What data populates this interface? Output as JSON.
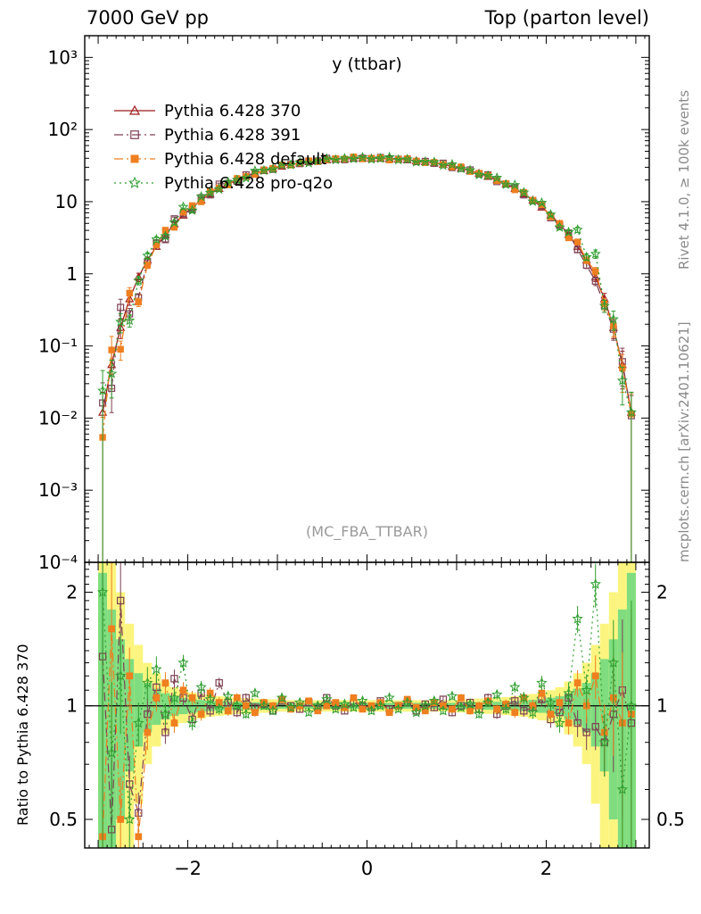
{
  "header": {
    "left": "7000 GeV pp",
    "right": "Top (parton level)"
  },
  "side_labels": {
    "right_top": "Rivet 4.1.0, ≥ 100k events",
    "right_bottom": "mcplots.cern.ch [arXiv:2401.10621]",
    "ratio_ylabel": "Ratio to Pythia 6.428 370"
  },
  "plot": {
    "title": "y (ttbar)",
    "watermark": "(MC_FBA_TTBAR)"
  },
  "axes": {
    "main_yticks": [
      "10³",
      "10²",
      "10",
      "1",
      "10⁻¹",
      "10⁻²",
      "10⁻³",
      "10⁻⁴"
    ],
    "main_ytick_exponents": [
      3,
      2,
      1,
      0,
      -1,
      -2,
      -3,
      -4
    ],
    "ratio_yticks": [
      "2",
      "1",
      "0.5"
    ],
    "ratio_ytick_values": [
      2,
      1,
      0.5
    ],
    "xticks": [
      "−2",
      "0",
      "2"
    ],
    "xtick_values": [
      -2,
      0,
      2
    ]
  },
  "chart_data": {
    "type": "line",
    "title": "y (ttbar)",
    "xlim": [
      -3.15,
      3.15
    ],
    "main_ylog": true,
    "main_ylim": [
      0.0001,
      2000
    ],
    "ratio_ylog": true,
    "ratio_ylim": [
      0.42,
      2.4
    ],
    "bin_width": 0.1,
    "x": [
      -2.95,
      -2.85,
      -2.75,
      -2.65,
      -2.55,
      -2.45,
      -2.35,
      -2.25,
      -2.15,
      -2.05,
      -1.95,
      -1.85,
      -1.75,
      -1.65,
      -1.55,
      -1.45,
      -1.35,
      -1.25,
      -1.15,
      -1.05,
      -0.95,
      -0.85,
      -0.75,
      -0.65,
      -0.55,
      -0.45,
      -0.35,
      -0.25,
      -0.15,
      -0.05,
      0.05,
      0.15,
      0.25,
      0.35,
      0.45,
      0.55,
      0.65,
      0.75,
      0.85,
      0.95,
      1.05,
      1.15,
      1.25,
      1.35,
      1.45,
      1.55,
      1.65,
      1.75,
      1.85,
      1.95,
      2.05,
      2.15,
      2.25,
      2.35,
      2.45,
      2.55,
      2.65,
      2.75,
      2.85,
      2.95
    ],
    "base_values": [
      0.012,
      0.055,
      0.18,
      0.45,
      0.9,
      1.55,
      2.4,
      3.5,
      4.9,
      6.5,
      8.4,
      10.5,
      12.8,
      15.2,
      17.6,
      20,
      22.4,
      24.8,
      27,
      29,
      31,
      32.8,
      34.4,
      35.8,
      37,
      38,
      38.8,
      39.4,
      39.8,
      40,
      40,
      39.8,
      39.4,
      38.8,
      38,
      37,
      35.8,
      34.4,
      32.8,
      31,
      29,
      27,
      24.8,
      22.4,
      20,
      17.6,
      15.2,
      12.8,
      10.5,
      8.4,
      6.5,
      4.9,
      3.5,
      2.4,
      1.55,
      0.9,
      0.45,
      0.18,
      0.055,
      0.012
    ],
    "series": [
      {
        "name": "Pythia 6.428 370",
        "color": "#9e1b1b",
        "marker": "triangle-open",
        "line": "solid",
        "ratio": null
      },
      {
        "name": "Pythia 6.428 391",
        "color": "#7d4052",
        "marker": "square-open",
        "line": "dashdot",
        "ratio": [
          1.35,
          0.47,
          1.9,
          0.62,
          0.52,
          0.95,
          1.12,
          0.85,
          1.18,
          1.05,
          0.92,
          1.08,
          0.97,
          1.15,
          1.02,
          0.96,
          1.05,
          0.99,
          1.01,
          0.97,
          1.03,
          1.0,
          0.98,
          1.02,
          0.99,
          1.05,
          1.0,
          0.97,
          1.02,
          1.0,
          0.99,
          1.03,
          0.98,
          1.0,
          1.02,
          0.97,
          1.01,
          0.99,
          1.04,
          0.96,
          1.0,
          1.02,
          0.98,
          1.05,
          0.95,
          1.0,
          1.03,
          0.97,
          0.99,
          1.04,
          0.92,
          0.96,
          1.05,
          0.9,
          0.85,
          0.88,
          0.8,
          0.95,
          1.1,
          0.9
        ]
      },
      {
        "name": "Pythia 6.428 default",
        "color": "#ef7f1f",
        "marker": "square-filled",
        "line": "dashdot",
        "ratio": [
          0.45,
          1.6,
          0.5,
          1.2,
          0.45,
          0.85,
          1.05,
          1.15,
          0.9,
          1.1,
          1.05,
          0.95,
          1.08,
          1.02,
          0.97,
          1.05,
          1.0,
          0.96,
          1.02,
          1.0,
          1.04,
          0.98,
          1.0,
          1.03,
          0.97,
          1.0,
          1.02,
          0.99,
          1.05,
          0.98,
          1.0,
          1.02,
          0.96,
          1.0,
          1.04,
          0.99,
          0.97,
          1.02,
          1.0,
          0.98,
          1.05,
          0.97,
          1.0,
          1.03,
          0.98,
          1.01,
          0.96,
          1.05,
          1.0,
          1.08,
          0.95,
          1.02,
          0.9,
          1.15,
          1.0,
          1.2,
          0.85,
          1.05,
          0.9,
          0.95
        ]
      },
      {
        "name": "Pythia 6.428 pro-q2o",
        "color": "#2f9e2f",
        "marker": "star-open",
        "line": "dotted",
        "ratio": [
          2.0,
          0.75,
          1.2,
          0.5,
          0.9,
          1.15,
          1.25,
          0.95,
          1.05,
          1.3,
          0.9,
          1.12,
          1.04,
          0.98,
          1.06,
          1.0,
          0.95,
          1.08,
          1.0,
          0.97,
          1.05,
          0.99,
          1.02,
          0.96,
          1.0,
          1.04,
          0.98,
          1.01,
          0.99,
          1.03,
          0.97,
          1.0,
          1.05,
          0.98,
          1.02,
          0.96,
          1.0,
          1.03,
          0.97,
          1.06,
          0.99,
          1.01,
          0.95,
          1.02,
          1.07,
          0.98,
          1.12,
          1.05,
          0.96,
          1.15,
          1.02,
          0.9,
          1.08,
          1.7,
          1.1,
          2.1,
          0.8,
          1.3,
          0.6,
          1.0
        ]
      }
    ],
    "bands": {
      "yellow_color": "#fbf57f",
      "green_color": "#7fdd7f",
      "yellow_halfwidth": [
        2.5,
        1.6,
        1.0,
        0.65,
        0.45,
        0.3,
        0.22,
        0.16,
        0.12,
        0.1,
        0.085,
        0.075,
        0.065,
        0.06,
        0.055,
        0.05,
        0.048,
        0.045,
        0.042,
        0.04,
        0.035,
        0.035,
        0.035,
        0.035,
        0.035,
        0.035,
        0.035,
        0.035,
        0.035,
        0.035,
        0.035,
        0.035,
        0.035,
        0.035,
        0.035,
        0.035,
        0.035,
        0.035,
        0.035,
        0.035,
        0.04,
        0.042,
        0.045,
        0.048,
        0.05,
        0.055,
        0.06,
        0.065,
        0.075,
        0.085,
        0.1,
        0.12,
        0.16,
        0.22,
        0.3,
        0.45,
        0.65,
        1.0,
        1.6,
        2.5
      ],
      "green_halfwidth": [
        1.25,
        0.8,
        0.5,
        0.33,
        0.22,
        0.15,
        0.11,
        0.08,
        0.06,
        0.05,
        0.042,
        0.037,
        0.032,
        0.03,
        0.027,
        0.025,
        0.024,
        0.022,
        0.021,
        0.02,
        0.018,
        0.018,
        0.018,
        0.018,
        0.018,
        0.018,
        0.018,
        0.018,
        0.018,
        0.018,
        0.018,
        0.018,
        0.018,
        0.018,
        0.018,
        0.018,
        0.018,
        0.018,
        0.018,
        0.018,
        0.02,
        0.021,
        0.022,
        0.024,
        0.025,
        0.027,
        0.03,
        0.032,
        0.037,
        0.042,
        0.05,
        0.06,
        0.08,
        0.11,
        0.15,
        0.22,
        0.33,
        0.5,
        0.8,
        1.25
      ]
    }
  }
}
